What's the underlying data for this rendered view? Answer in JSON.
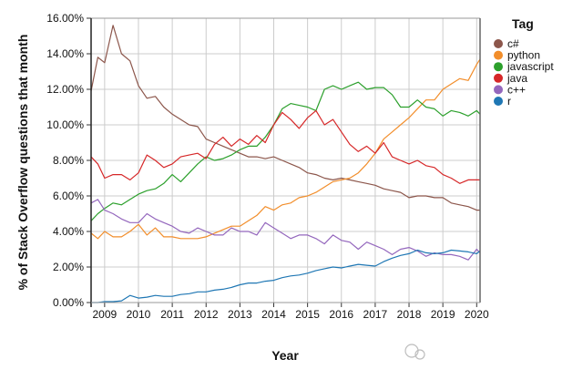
{
  "chart_data": {
    "type": "line",
    "title": "",
    "xlabel": "Year",
    "ylabel": "% of Stack Overflow questions that month",
    "xlim": [
      2008.6,
      2020.1
    ],
    "ylim": [
      0,
      16
    ],
    "grid": true,
    "xticks": [
      "2009",
      "2010",
      "2011",
      "2012",
      "2013",
      "2014",
      "2015",
      "2016",
      "2017",
      "2018",
      "2019",
      "2020"
    ],
    "yticks": [
      "0.00%",
      "2.00%",
      "4.00%",
      "6.00%",
      "8.00%",
      "10.00%",
      "12.00%",
      "14.00%",
      "16.00%"
    ],
    "legend": {
      "title": "Tag",
      "placement": "right"
    },
    "x": [
      2008.6,
      2008.8,
      2009,
      2009.25,
      2009.5,
      2009.75,
      2010,
      2010.25,
      2010.5,
      2010.75,
      2011,
      2011.25,
      2011.5,
      2011.75,
      2012,
      2012.25,
      2012.5,
      2012.75,
      2013,
      2013.25,
      2013.5,
      2013.75,
      2014,
      2014.25,
      2014.5,
      2014.75,
      2015,
      2015.25,
      2015.5,
      2015.75,
      2016,
      2016.25,
      2016.5,
      2016.75,
      2017,
      2017.25,
      2017.5,
      2017.75,
      2018,
      2018.25,
      2018.5,
      2018.75,
      2019,
      2019.25,
      2019.5,
      2019.75,
      2020,
      2020.1
    ],
    "series": [
      {
        "name": "c#",
        "color": "#8c564b",
        "values": [
          11.9,
          13.8,
          13.5,
          15.6,
          14.0,
          13.6,
          12.2,
          11.5,
          11.6,
          11.0,
          10.6,
          10.3,
          10.0,
          9.9,
          9.2,
          9.0,
          8.8,
          8.6,
          8.4,
          8.2,
          8.2,
          8.1,
          8.2,
          8.0,
          7.8,
          7.6,
          7.3,
          7.2,
          7.0,
          6.9,
          7.0,
          6.9,
          6.8,
          6.7,
          6.6,
          6.4,
          6.3,
          6.2,
          5.9,
          6.0,
          6.0,
          5.9,
          5.9,
          5.6,
          5.5,
          5.4,
          5.2,
          5.2
        ]
      },
      {
        "name": "python",
        "color": "#f28e2b",
        "values": [
          3.9,
          3.6,
          4.0,
          3.7,
          3.7,
          4.0,
          4.4,
          3.8,
          4.2,
          3.7,
          3.7,
          3.6,
          3.6,
          3.6,
          3.7,
          3.9,
          4.1,
          4.3,
          4.3,
          4.6,
          4.9,
          5.4,
          5.2,
          5.5,
          5.6,
          5.9,
          6.0,
          6.2,
          6.5,
          6.8,
          6.9,
          7.0,
          7.3,
          7.8,
          8.4,
          9.2,
          9.6,
          10.0,
          10.4,
          10.9,
          11.4,
          11.4,
          12.0,
          12.3,
          12.6,
          12.5,
          13.4,
          13.7
        ]
      },
      {
        "name": "javascript",
        "color": "#2ca02c",
        "values": [
          4.6,
          5.0,
          5.3,
          5.6,
          5.5,
          5.8,
          6.1,
          6.3,
          6.4,
          6.7,
          7.2,
          6.8,
          7.3,
          7.8,
          8.2,
          8.0,
          8.1,
          8.3,
          8.6,
          8.8,
          8.8,
          9.3,
          10.0,
          10.9,
          11.2,
          11.1,
          11.0,
          10.8,
          12.0,
          12.2,
          12.0,
          12.2,
          12.4,
          12.0,
          12.1,
          12.1,
          11.7,
          11.0,
          11.0,
          11.4,
          11.0,
          10.9,
          10.5,
          10.8,
          10.7,
          10.5,
          10.8,
          10.6
        ]
      },
      {
        "name": "java",
        "color": "#d62728",
        "values": [
          8.2,
          7.8,
          7.0,
          7.2,
          7.2,
          6.9,
          7.3,
          8.3,
          8.0,
          7.6,
          7.8,
          8.2,
          8.3,
          8.4,
          8.1,
          8.9,
          9.3,
          8.8,
          9.2,
          8.9,
          9.4,
          9.0,
          10.0,
          10.7,
          10.3,
          9.8,
          10.4,
          10.8,
          10.0,
          10.3,
          9.6,
          8.9,
          8.5,
          8.8,
          8.4,
          9.0,
          8.2,
          8.0,
          7.8,
          8.0,
          7.7,
          7.6,
          7.2,
          7.0,
          6.7,
          6.9,
          6.9,
          6.9
        ]
      },
      {
        "name": "c++",
        "color": "#9467bd",
        "values": [
          5.6,
          5.8,
          5.2,
          5.0,
          4.7,
          4.5,
          4.5,
          5.0,
          4.7,
          4.5,
          4.3,
          4.0,
          3.9,
          4.2,
          4.0,
          3.8,
          3.8,
          4.2,
          4.0,
          4.0,
          3.8,
          4.5,
          4.2,
          3.9,
          3.6,
          3.8,
          3.8,
          3.6,
          3.3,
          3.8,
          3.5,
          3.4,
          3.0,
          3.4,
          3.2,
          3.0,
          2.7,
          3.0,
          3.1,
          2.9,
          2.6,
          2.8,
          2.7,
          2.7,
          2.6,
          2.4,
          3.0,
          2.8
        ]
      },
      {
        "name": "r",
        "color": "#1f77b4",
        "values": [
          0.0,
          0.0,
          0.05,
          0.05,
          0.1,
          0.4,
          0.25,
          0.3,
          0.4,
          0.35,
          0.35,
          0.45,
          0.5,
          0.6,
          0.6,
          0.7,
          0.75,
          0.85,
          1.0,
          1.1,
          1.1,
          1.2,
          1.25,
          1.4,
          1.5,
          1.55,
          1.65,
          1.8,
          1.9,
          2.0,
          1.95,
          2.05,
          2.15,
          2.1,
          2.05,
          2.3,
          2.5,
          2.65,
          2.75,
          2.95,
          2.8,
          2.75,
          2.8,
          2.95,
          2.9,
          2.85,
          2.75,
          2.9
        ]
      }
    ]
  },
  "watermark": "量子位"
}
